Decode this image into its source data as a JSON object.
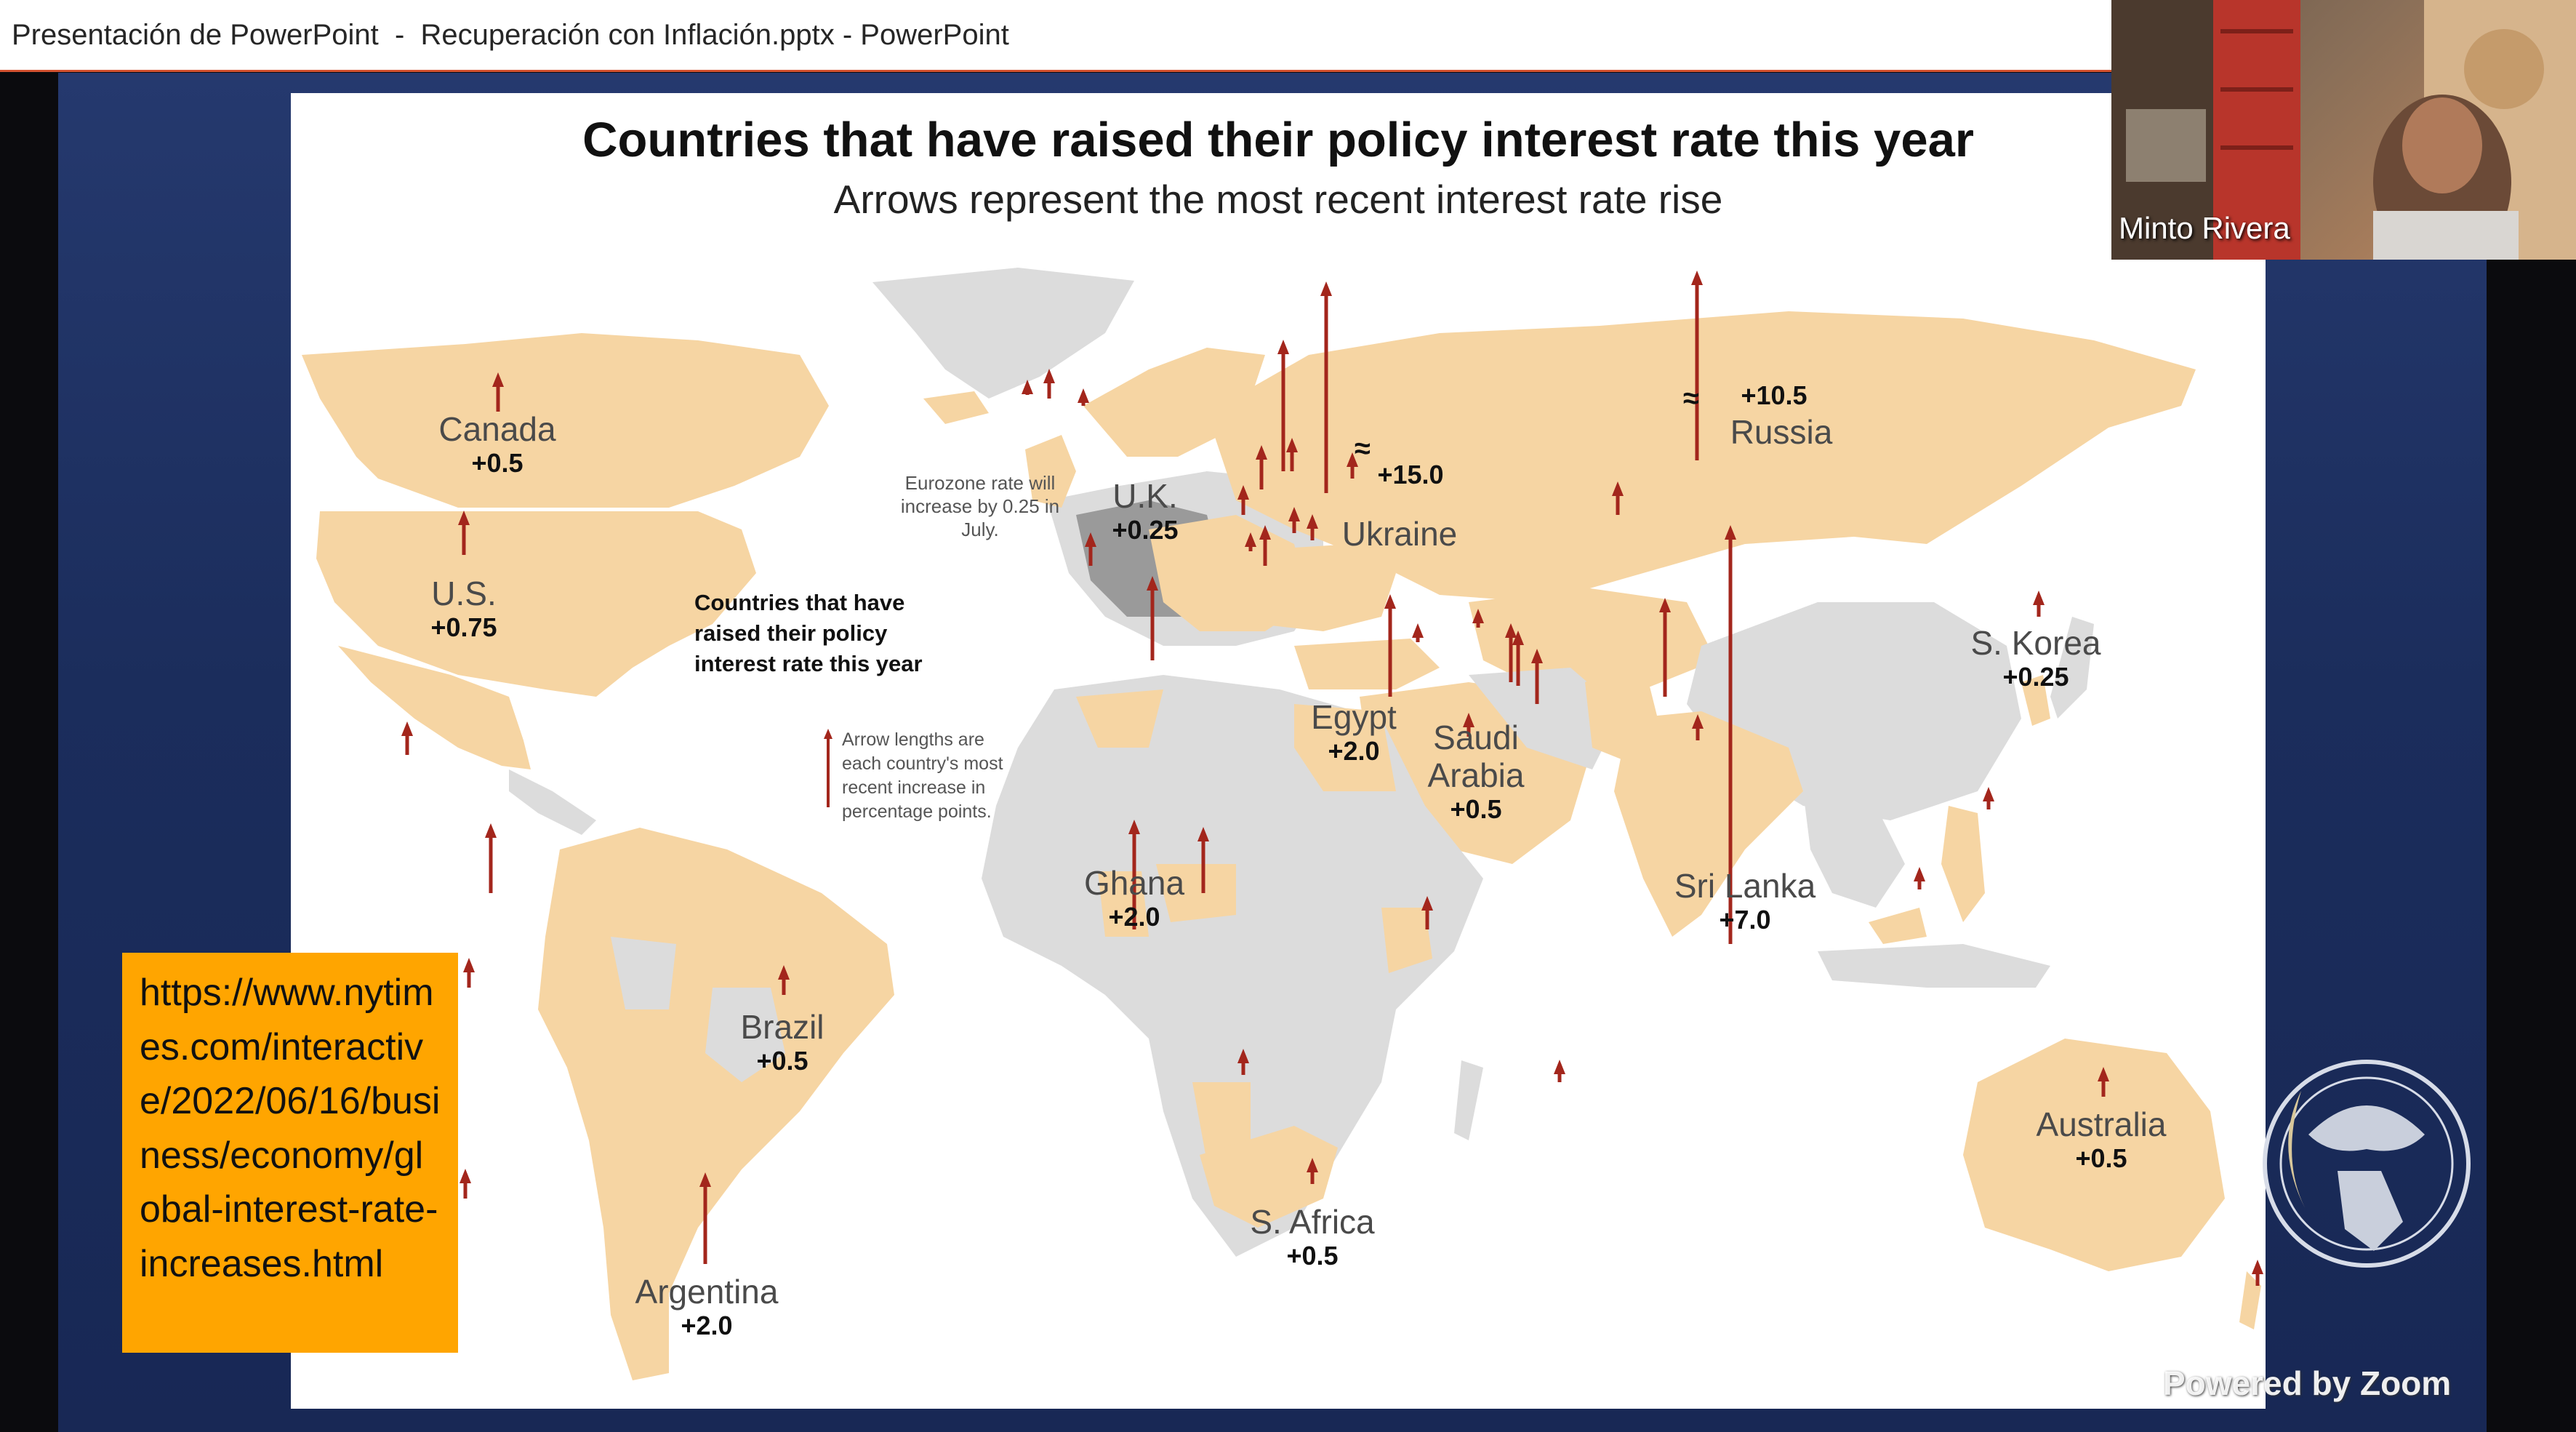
{
  "window": {
    "title": "Presentación de PowerPoint  -  Recuperación con Inflación.pptx - PowerPoint"
  },
  "slide": {
    "title": "Countries that have raised their policy interest rate this year",
    "subtitle": "Arrows represent the most recent interest rate rise",
    "eurozone_note": "Eurozone rate will increase by 0.25 in July.",
    "legend_title": "Countries that have raised their policy interest rate this year",
    "legend_text": "Arrow lengths are each country's most recent increase in percentage points.",
    "break_symbol": "≈",
    "url_text": "https://www.nytimes.com/interactive/2022/06/16/business/economy/global-interest-rate-increases.html"
  },
  "chart_data": {
    "type": "map",
    "title": "Countries that have raised their policy interest rate this year",
    "subtitle": "Arrows represent the most recent interest rate rise",
    "labeled_countries": [
      {
        "name": "Canada",
        "value": "+0.5"
      },
      {
        "name": "U.S.",
        "value": "+0.75"
      },
      {
        "name": "U.K.",
        "value": "+0.25"
      },
      {
        "name": "Ukraine",
        "value": "+15.0"
      },
      {
        "name": "Russia",
        "value": "+10.5"
      },
      {
        "name": "S. Korea",
        "value": "+0.25"
      },
      {
        "name": "Egypt",
        "value": "+2.0"
      },
      {
        "name": "Saudi Arabia",
        "value": "+0.5"
      },
      {
        "name": "Ghana",
        "value": "+2.0"
      },
      {
        "name": "Sri Lanka",
        "value": "+7.0"
      },
      {
        "name": "Brazil",
        "value": "+0.5"
      },
      {
        "name": "Argentina",
        "value": "+2.0"
      },
      {
        "name": "S. Africa",
        "value": "+0.5"
      },
      {
        "name": "Australia",
        "value": "+0.5"
      }
    ]
  },
  "video": {
    "participant_name": "Minto Rivera",
    "watermark": "Powered by Zoom"
  },
  "colors": {
    "raised": "#f6d5a3",
    "not_raised": "#dcdcdc",
    "eurozone": "#9a9a9a",
    "arrow": "#a3261c",
    "url_box": "#ffa500",
    "stage": "#1f3266",
    "titlebar_accent": "#d35230"
  }
}
